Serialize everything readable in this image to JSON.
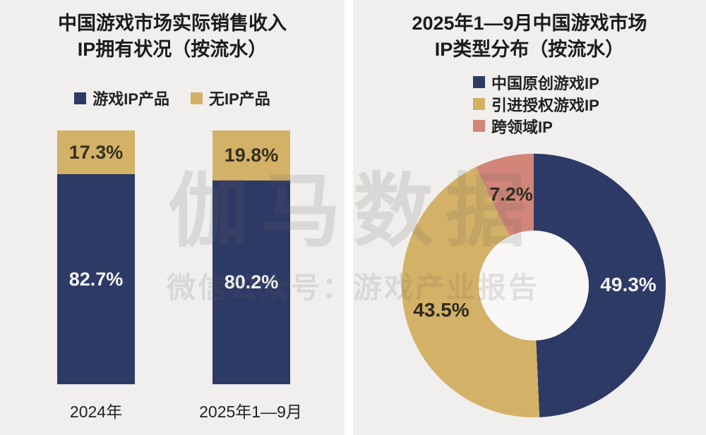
{
  "colors": {
    "navy": "#2e3a66",
    "gold": "#d3b167",
    "salmon": "#d28579",
    "panel_bg": "#f0efed",
    "hole": "#f8f7f6"
  },
  "watermark": {
    "line1": "伽马数据",
    "line2": "微信公众号：游戏产业报告"
  },
  "left": {
    "title1": "中国游戏市场实际销售收入",
    "title2": "IP拥有状况（按流水）",
    "legend": [
      {
        "label": "游戏IP产品"
      },
      {
        "label": "无IP产品"
      }
    ],
    "bars": [
      {
        "category": "2024年",
        "top_label": "17.3%",
        "bottom_label": "82.7%"
      },
      {
        "category": "2025年1—9月",
        "top_label": "19.8%",
        "bottom_label": "80.2%"
      }
    ]
  },
  "right": {
    "title1": "2025年1—9月中国游戏市场",
    "title2": "IP类型分布（按流水）",
    "legend": [
      {
        "label": "中国原创游戏IP"
      },
      {
        "label": "引进授权游戏IP"
      },
      {
        "label": "跨领域IP"
      }
    ],
    "labels": {
      "blue": "49.3%",
      "gold": "43.5%",
      "salmon": "7.2%"
    }
  },
  "chart_data": [
    {
      "type": "bar",
      "subtype": "stacked-100-percent-column",
      "title": "中国游戏市场实际销售收入IP拥有状况（按流水）",
      "categories": [
        "2024年",
        "2025年1—9月"
      ],
      "series": [
        {
          "name": "游戏IP产品",
          "color": "#2e3a66",
          "values": [
            82.7,
            80.2
          ]
        },
        {
          "name": "无IP产品",
          "color": "#d3b167",
          "values": [
            17.3,
            19.8
          ]
        }
      ],
      "ylim": [
        0,
        100
      ],
      "value_format": "percent",
      "grid": false,
      "legend_position": "top"
    },
    {
      "type": "pie",
      "subtype": "donut",
      "title": "2025年1—9月中国游戏市场IP类型分布（按流水）",
      "slices": [
        {
          "label": "中国原创游戏IP",
          "value": 49.3,
          "color": "#2e3a66"
        },
        {
          "label": "引进授权游戏IP",
          "value": 43.5,
          "color": "#d3b167"
        },
        {
          "label": "跨领域IP",
          "value": 7.2,
          "color": "#d28579"
        }
      ],
      "start_angle_deg": 0,
      "direction": "clockwise",
      "inner_radius_ratio": 0.42,
      "legend_position": "top"
    }
  ]
}
